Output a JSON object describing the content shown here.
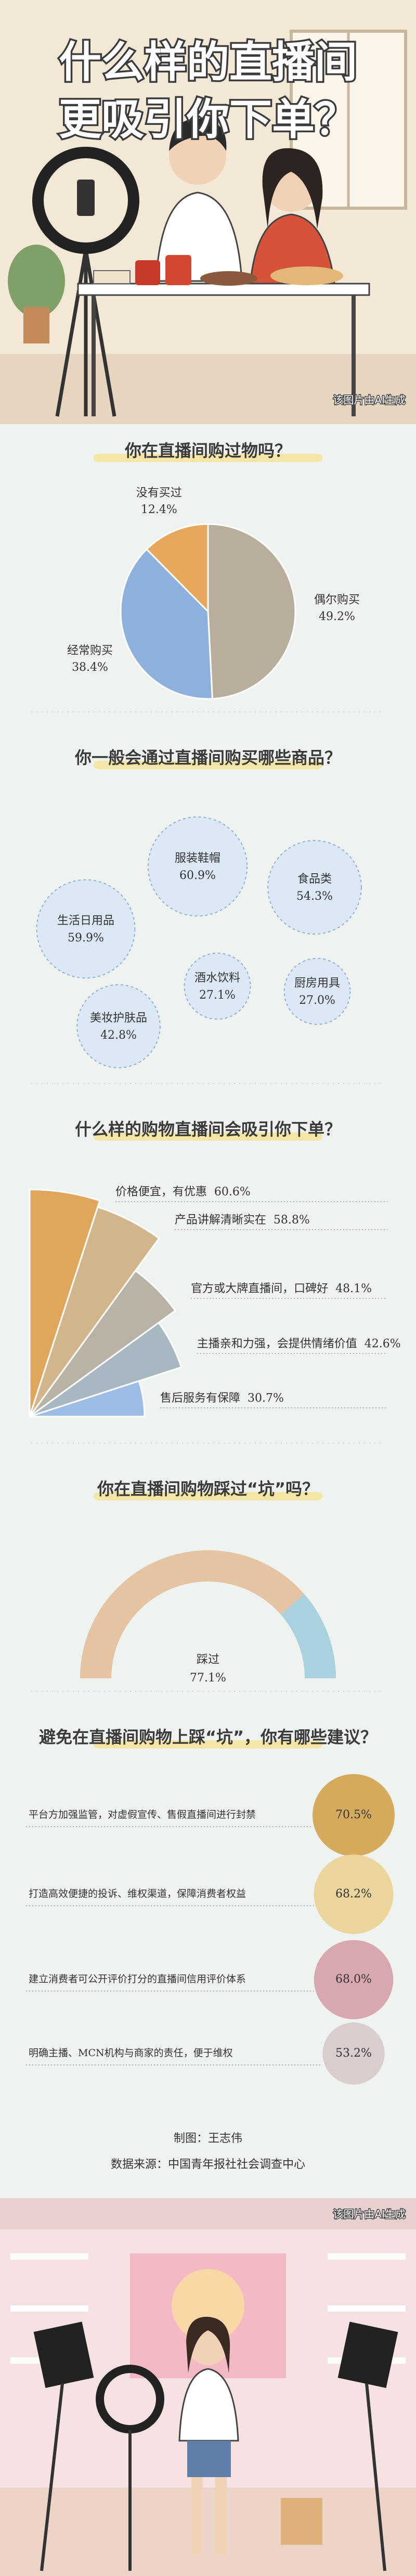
{
  "header": {
    "title_line1": "什么样的直播间",
    "title_line2": "更吸引你下单？",
    "note": "该图片由AI生成"
  },
  "chart_data": [
    {
      "type": "pie",
      "title": "你在直播间购过物吗？",
      "categories": [
        "偶尔购买",
        "经常购买",
        "没有买过"
      ],
      "values": [
        49.2,
        38.4,
        12.4
      ],
      "value_labels": [
        "49.2%",
        "38.4%",
        "12.4%"
      ],
      "colors": [
        "#b9ad9e",
        "#8eb0dd",
        "#e8a85b"
      ]
    },
    {
      "type": "bubble",
      "title": "你一般会通过直播间购买哪些商品？",
      "categories": [
        "服装鞋帽",
        "食品类",
        "生活日用品",
        "酒水饮料",
        "厨房用具",
        "美妆护肤品"
      ],
      "values": [
        60.9,
        54.3,
        59.9,
        27.1,
        27.0,
        42.8
      ],
      "value_labels": [
        "60.9%",
        "54.3%",
        "59.9%",
        "27.1%",
        "27.0%",
        "42.8%"
      ],
      "color": "#dce8f6"
    },
    {
      "type": "fan",
      "title": "什么样的购物直播间会吸引你下单？",
      "categories": [
        "价格便宜，有优惠",
        "产品讲解清晰实在",
        "官方或大牌直播间，口碑好",
        "主播亲和力强，会提供情绪价值",
        "售后服务有保障"
      ],
      "values": [
        60.6,
        58.8,
        48.1,
        42.6,
        30.7
      ],
      "value_labels": [
        "60.6%",
        "58.8%",
        "48.1%",
        "42.6%",
        "30.7%"
      ],
      "colors": [
        "#e0a65c",
        "#d3b58c",
        "#bab3a5",
        "#a8b8c3",
        "#9cbde6"
      ]
    },
    {
      "type": "gauge",
      "title": "你在直播间购物踩过“坑”吗？",
      "categories": [
        "踩过"
      ],
      "values": [
        77.1
      ],
      "value_labels": [
        "77.1%"
      ],
      "color": "#e6c4a1",
      "track_color": "#a9d2de"
    },
    {
      "type": "bubble-list",
      "title": "避免在直播间购物上踩“坑”，你有哪些建议？",
      "categories": [
        "平台方加强监管，对虚假宣传、售假直播间进行封禁",
        "打造高效便捷的投诉、维权渠道，保障消费者权益",
        "建立消费者可公开评价打分的直播间信用评价体系",
        "明确主播、MCN机构与商家的责任，便于维权"
      ],
      "values": [
        70.5,
        68.2,
        68.0,
        53.2
      ],
      "value_labels": [
        "70.5%",
        "68.2%",
        "68.0%",
        "53.2%"
      ],
      "colors": [
        "#d6aa5c",
        "#ecd49d",
        "#d9a7af",
        "#d9cdcd"
      ]
    }
  ],
  "footer": {
    "credit": "制图：王志伟",
    "source": "数据来源：中国青年报社社会调查中心",
    "note": "该图片由AI生成"
  }
}
